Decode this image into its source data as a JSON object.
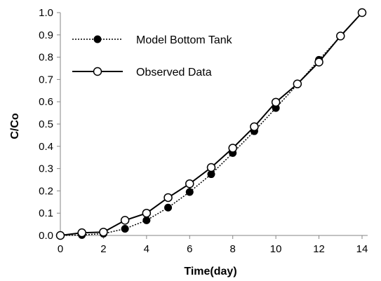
{
  "chart_data": {
    "type": "line",
    "title": "",
    "xlabel": "Time(day)",
    "ylabel": "C/Co",
    "xlim": [
      0,
      14
    ],
    "ylim": [
      0,
      1.0
    ],
    "x_ticks": [
      "0",
      "2",
      "4",
      "6",
      "8",
      "10",
      "12",
      "14"
    ],
    "y_ticks": [
      "0.0",
      "0.1",
      "0.2",
      "0.3",
      "0.4",
      "0.5",
      "0.6",
      "0.7",
      "0.8",
      "0.9",
      "1.0"
    ],
    "grid": false,
    "legend_position": "top-left",
    "series": [
      {
        "name": "Model Bottom Tank",
        "line_style": "dotted",
        "marker": "filled-circle",
        "color": "#000000",
        "x": [
          0,
          1,
          2,
          3,
          4,
          5,
          6,
          7,
          8,
          9,
          10,
          11,
          12,
          13,
          14
        ],
        "y": [
          0.0,
          0.002,
          0.008,
          0.03,
          0.068,
          0.125,
          0.195,
          0.275,
          0.37,
          0.468,
          0.572,
          0.678,
          0.788,
          0.893,
          1.0
        ]
      },
      {
        "name": "Observed Data",
        "line_style": "solid",
        "marker": "open-circle",
        "color": "#000000",
        "x": [
          0,
          1,
          2,
          3,
          4,
          5,
          6,
          7,
          8,
          9,
          10,
          11,
          12,
          13,
          14
        ],
        "y": [
          0.0,
          0.012,
          0.015,
          0.068,
          0.1,
          0.17,
          0.232,
          0.305,
          0.392,
          0.488,
          0.598,
          0.68,
          0.778,
          0.895,
          1.0
        ]
      }
    ]
  }
}
